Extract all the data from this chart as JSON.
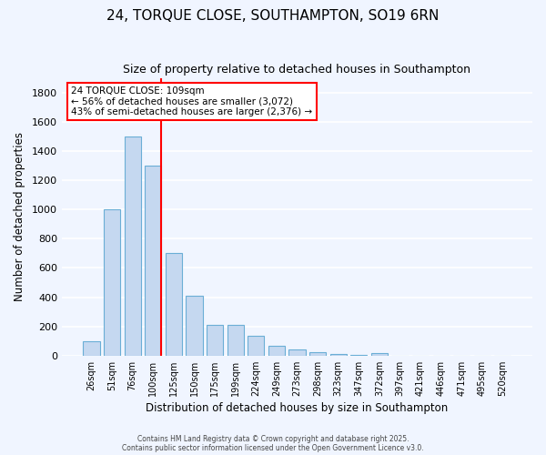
{
  "title": "24, TORQUE CLOSE, SOUTHAMPTON, SO19 6RN",
  "subtitle": "Size of property relative to detached houses in Southampton",
  "xlabel": "Distribution of detached houses by size in Southampton",
  "ylabel": "Number of detached properties",
  "bins": [
    "26sqm",
    "51sqm",
    "76sqm",
    "100sqm",
    "125sqm",
    "150sqm",
    "175sqm",
    "199sqm",
    "224sqm",
    "249sqm",
    "273sqm",
    "298sqm",
    "323sqm",
    "347sqm",
    "372sqm",
    "397sqm",
    "421sqm",
    "446sqm",
    "471sqm",
    "495sqm",
    "520sqm"
  ],
  "bar_values": [
    100,
    1000,
    1500,
    1300,
    700,
    410,
    210,
    210,
    135,
    70,
    40,
    25,
    10,
    5,
    18,
    0,
    0,
    0,
    0,
    0,
    0
  ],
  "bar_color": "#c5d8f0",
  "bar_edge_color": "#6aaed6",
  "red_line_index": 3,
  "annotation_title": "24 TORQUE CLOSE: 109sqm",
  "annotation_line1": "← 56% of detached houses are smaller (3,072)",
  "annotation_line2": "43% of semi-detached houses are larger (2,376) →",
  "ylim": [
    0,
    1900
  ],
  "yticks": [
    0,
    200,
    400,
    600,
    800,
    1000,
    1200,
    1400,
    1600,
    1800
  ],
  "background_color": "#f0f5ff",
  "grid_color": "#ffffff",
  "footer1": "Contains HM Land Registry data © Crown copyright and database right 2025.",
  "footer2": "Contains public sector information licensed under the Open Government Licence v3.0."
}
